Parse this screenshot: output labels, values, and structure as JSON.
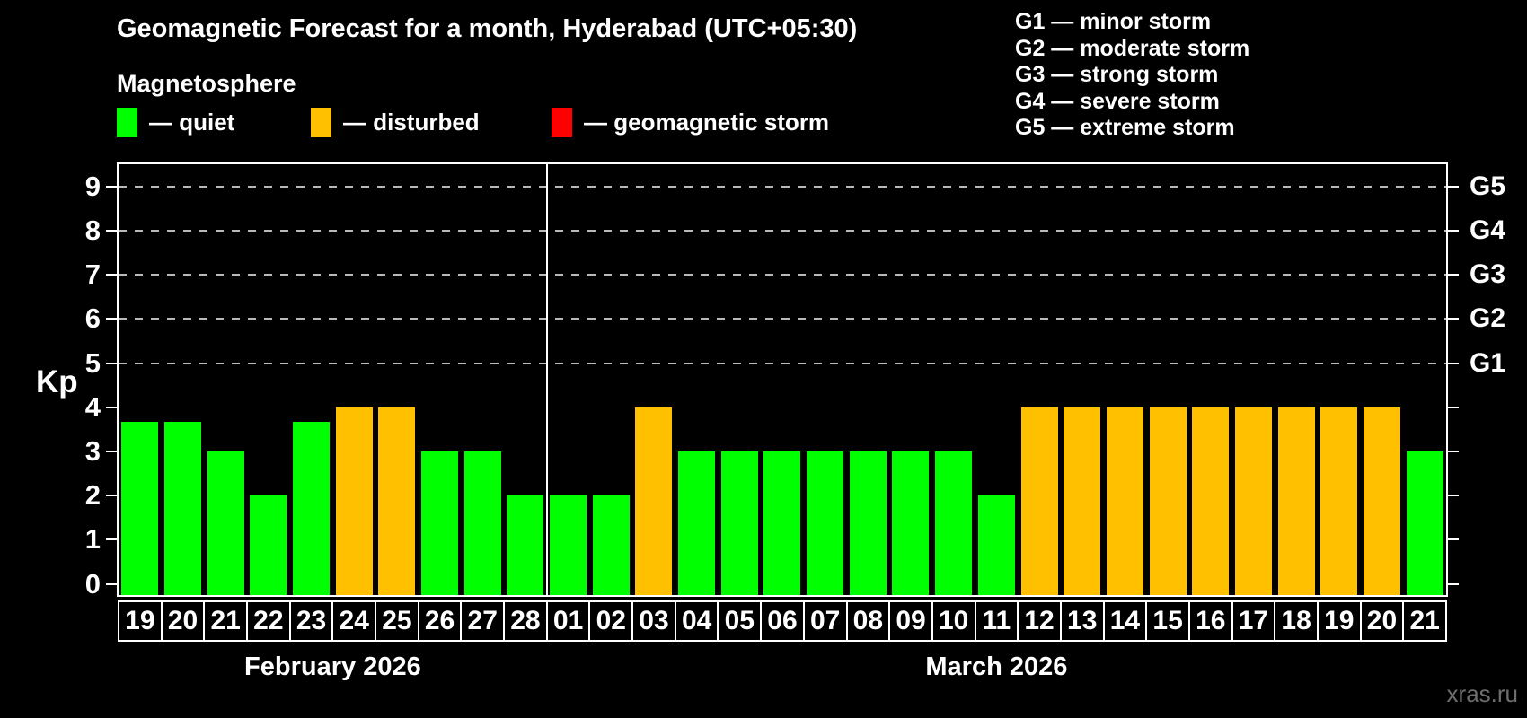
{
  "title": "Geomagnetic Forecast for a month, Hyderabad (UTC+05:30)",
  "subtitle": "Magnetosphere",
  "legend": {
    "items": [
      {
        "name": "quiet",
        "label": "— quiet",
        "color": "#00ff00"
      },
      {
        "name": "disturbed",
        "label": "— disturbed",
        "color": "#ffc000"
      },
      {
        "name": "storm",
        "label": "— geomagnetic storm",
        "color": "#ff0000"
      }
    ]
  },
  "storm_scale": [
    "G1 — minor storm",
    "G2 — moderate storm",
    "G3 — strong storm",
    "G4 — severe storm",
    "G5 — extreme storm"
  ],
  "y_axis": {
    "label": "Kp",
    "ticks": [
      0,
      1,
      2,
      3,
      4,
      5,
      6,
      7,
      8,
      9
    ]
  },
  "right_axis": {
    "labels": [
      {
        "kp": 5,
        "text": "G1"
      },
      {
        "kp": 6,
        "text": "G2"
      },
      {
        "kp": 7,
        "text": "G3"
      },
      {
        "kp": 8,
        "text": "G4"
      },
      {
        "kp": 9,
        "text": "G5"
      }
    ]
  },
  "watermark": "xras.ru",
  "chart_data": {
    "type": "bar",
    "title": "Geomagnetic Forecast for a month, Hyderabad (UTC+05:30)",
    "xlabel": "",
    "ylabel": "Kp",
    "ylim": [
      0,
      9
    ],
    "grid": "horizontal dashed lines at Kp 5,6,7,8,9 matching G1–G5 levels",
    "legend_position": "top-left",
    "categories": [
      "19",
      "20",
      "21",
      "22",
      "23",
      "24",
      "25",
      "26",
      "27",
      "28",
      "01",
      "02",
      "03",
      "04",
      "05",
      "06",
      "07",
      "08",
      "09",
      "10",
      "11",
      "12",
      "13",
      "14",
      "15",
      "16",
      "17",
      "18",
      "19",
      "20",
      "21"
    ],
    "values": [
      3.67,
      3.67,
      3,
      2,
      3.67,
      4,
      4,
      3,
      3,
      2,
      2,
      2,
      4,
      3,
      3,
      3,
      3,
      3,
      3,
      3,
      2,
      4,
      4,
      4,
      4,
      4,
      4,
      4,
      4,
      4,
      3
    ],
    "statuses": [
      "quiet",
      "quiet",
      "quiet",
      "quiet",
      "quiet",
      "disturbed",
      "disturbed",
      "quiet",
      "quiet",
      "quiet",
      "quiet",
      "quiet",
      "disturbed",
      "quiet",
      "quiet",
      "quiet",
      "quiet",
      "quiet",
      "quiet",
      "quiet",
      "quiet",
      "disturbed",
      "disturbed",
      "disturbed",
      "disturbed",
      "disturbed",
      "disturbed",
      "disturbed",
      "disturbed",
      "disturbed",
      "quiet"
    ],
    "months": [
      {
        "name": "February 2026",
        "days": 10
      },
      {
        "name": "March 2026",
        "days": 21
      }
    ],
    "status_colors": {
      "quiet": "#00ff00",
      "disturbed": "#ffc000",
      "storm": "#ff0000"
    }
  }
}
